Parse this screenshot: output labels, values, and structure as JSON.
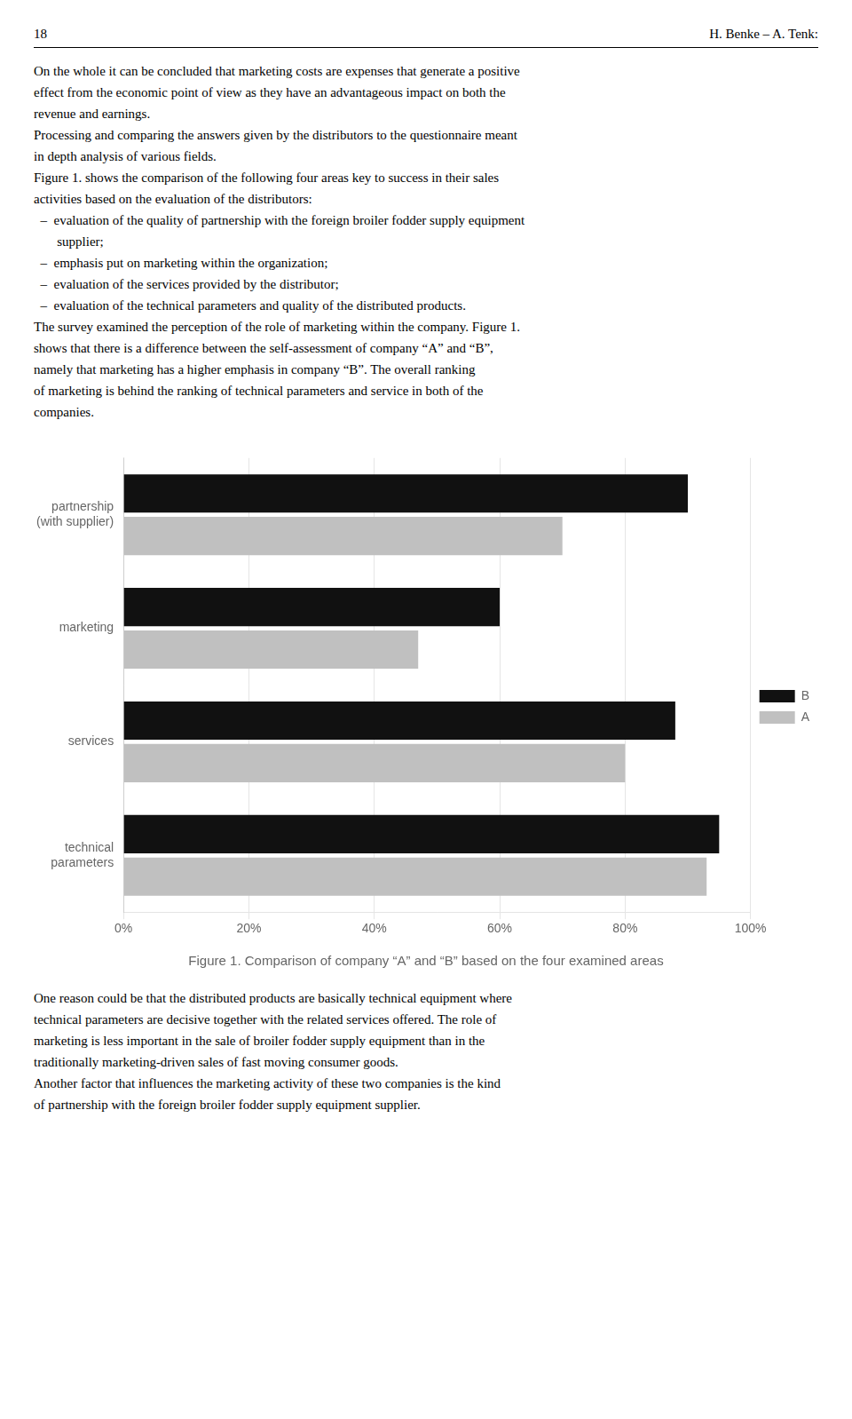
{
  "chart_data": {
    "type": "bar",
    "orientation": "horizontal",
    "title": "Figure 1. Comparison of company “A” and “B” based on the four examined areas",
    "annotations": [
      "18",
      "H. Benke – A. Tenk:",
      "On the whole it can be concluded that marketing costs are expenses that generate a positive\neffect from the economic point of view as they have an advantageous impact on both the\nrevenue and earnings.\nProcessing and comparing the answers given by the distributors to the questionnaire meant\nin depth analysis of various fields.\nFigure 1. shows the comparison of the following four areas key to success in their sales\nactivities based on the evaluation of the distributors:\n  –  evaluation of the quality of partnership with the foreign broiler fodder supply equipment\n       supplier;\n  –  emphasis put on marketing within the organization;\n  –  evaluation of the services provided by the distributor;\n  –  evaluation of the technical parameters and quality of the distributed products.\nThe survey examined the perception of the role of marketing within the company. Figure 1.\nshows that there is a difference between the self-assessment of company “A” and “B”,\nnamely that marketing has a higher emphasis in company “B”. The overall ranking\nof marketing is behind the ranking of technical parameters and service in both of the\ncompanies.",
      "One reason could be that the distributed products are basically technical equipment where\ntechnical parameters are decisive together with the related services offered. The role of\nmarketing is less important in the sale of broiler fodder supply equipment than in the\ntraditionally marketing-driven sales of fast moving consumer goods.\nAnother factor that influences the marketing activity of these two companies is the kind\nof partnership with the foreign broiler fodder supply equipment supplier."
    ],
    "categories": [
      "partnership\n(with supplier)",
      "marketing",
      "services",
      "technical\nparameters"
    ],
    "series": [
      {
        "name": "B",
        "color": "#111111",
        "values": [
          0.9,
          0.6,
          0.88,
          0.95
        ]
      },
      {
        "name": "A",
        "color": "#c0c0c0",
        "values": [
          0.7,
          0.47,
          0.8,
          0.93
        ]
      }
    ],
    "xlim": [
      0,
      1.0
    ],
    "xticks": [
      {
        "value": 0.0,
        "label": "0%"
      },
      {
        "value": 0.2,
        "label": "20%"
      },
      {
        "value": 0.4,
        "label": "40%"
      },
      {
        "value": 0.6,
        "label": "60%"
      },
      {
        "value": 0.8,
        "label": "80%"
      },
      {
        "value": 1.0,
        "label": "100%"
      }
    ],
    "grid": true,
    "legend": "right"
  }
}
